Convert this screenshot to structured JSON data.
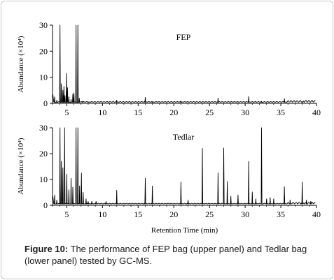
{
  "caption": {
    "label": "Figure 10:",
    "text": "The performance of FEP bag (upper panel) and Tedlar bag (lower panel) tested by GC-MS."
  },
  "chart_data": [
    {
      "type": "line",
      "panel": "upper",
      "title": "FEP",
      "xlabel": "",
      "ylabel": "Abundance (×10⁴)",
      "xlim": [
        3,
        40
      ],
      "ylim": [
        0,
        30
      ],
      "x_ticks": [
        5,
        10,
        15,
        20,
        25,
        30,
        35,
        40
      ],
      "y_ticks": [
        0,
        10,
        20,
        30
      ],
      "baseline": 0.4,
      "peaks": [
        {
          "x": 3.3,
          "y": 2.5
        },
        {
          "x": 3.6,
          "y": 1.2
        },
        {
          "x": 4.05,
          "y": 30
        },
        {
          "x": 4.25,
          "y": 7.5
        },
        {
          "x": 4.45,
          "y": 5
        },
        {
          "x": 4.6,
          "y": 6.5
        },
        {
          "x": 4.75,
          "y": 3
        },
        {
          "x": 4.95,
          "y": 11.5
        },
        {
          "x": 5.1,
          "y": 6
        },
        {
          "x": 5.3,
          "y": 2.5
        },
        {
          "x": 5.6,
          "y": 1.5
        },
        {
          "x": 5.85,
          "y": 3.5
        },
        {
          "x": 6.0,
          "y": 4
        },
        {
          "x": 6.3,
          "y": 30
        },
        {
          "x": 6.55,
          "y": 30
        },
        {
          "x": 6.75,
          "y": 2
        },
        {
          "x": 7.2,
          "y": 0.8
        },
        {
          "x": 8.0,
          "y": 0.6
        },
        {
          "x": 12.0,
          "y": 1.2
        },
        {
          "x": 16.0,
          "y": 2.3
        },
        {
          "x": 17.0,
          "y": 0.7
        },
        {
          "x": 21.0,
          "y": 0.9
        },
        {
          "x": 26.2,
          "y": 2.0
        },
        {
          "x": 30.5,
          "y": 2.6
        },
        {
          "x": 32.3,
          "y": 0.8
        },
        {
          "x": 35.5,
          "y": 1.8
        },
        {
          "x": 38.0,
          "y": 0.6
        }
      ]
    },
    {
      "type": "line",
      "panel": "lower",
      "title": "Tedlar",
      "xlabel": "Retention Time (min)",
      "ylabel": "Abundance (×10⁴)",
      "xlim": [
        3,
        40
      ],
      "ylim": [
        0,
        30
      ],
      "x_ticks": [
        5,
        10,
        15,
        20,
        25,
        30,
        35,
        40
      ],
      "y_ticks": [
        0,
        10,
        20,
        30
      ],
      "baseline": 0.5,
      "peaks": [
        {
          "x": 3.3,
          "y": 4
        },
        {
          "x": 3.6,
          "y": 2
        },
        {
          "x": 4.05,
          "y": 30
        },
        {
          "x": 4.25,
          "y": 17
        },
        {
          "x": 4.45,
          "y": 14.5
        },
        {
          "x": 4.7,
          "y": 30
        },
        {
          "x": 5.0,
          "y": 12
        },
        {
          "x": 5.3,
          "y": 6
        },
        {
          "x": 5.6,
          "y": 10.5
        },
        {
          "x": 5.85,
          "y": 7
        },
        {
          "x": 6.3,
          "y": 30
        },
        {
          "x": 6.55,
          "y": 30
        },
        {
          "x": 6.8,
          "y": 7.5
        },
        {
          "x": 7.05,
          "y": 12.5
        },
        {
          "x": 7.3,
          "y": 5
        },
        {
          "x": 7.7,
          "y": 2.5
        },
        {
          "x": 8.0,
          "y": 1.5
        },
        {
          "x": 8.5,
          "y": 1.5
        },
        {
          "x": 9.1,
          "y": 1.5
        },
        {
          "x": 10.5,
          "y": 1.5
        },
        {
          "x": 12.0,
          "y": 5.8
        },
        {
          "x": 16.0,
          "y": 10.5
        },
        {
          "x": 17.0,
          "y": 7.5
        },
        {
          "x": 21.0,
          "y": 9
        },
        {
          "x": 22.0,
          "y": 2
        },
        {
          "x": 24.0,
          "y": 22
        },
        {
          "x": 26.2,
          "y": 12.5
        },
        {
          "x": 27.0,
          "y": 22.2
        },
        {
          "x": 27.5,
          "y": 9.2
        },
        {
          "x": 28.0,
          "y": 3.5
        },
        {
          "x": 29.0,
          "y": 4
        },
        {
          "x": 30.5,
          "y": 17
        },
        {
          "x": 31.0,
          "y": 5.2
        },
        {
          "x": 31.5,
          "y": 2.5
        },
        {
          "x": 32.3,
          "y": 30
        },
        {
          "x": 33.0,
          "y": 2.5
        },
        {
          "x": 33.5,
          "y": 3
        },
        {
          "x": 34.0,
          "y": 2.5
        },
        {
          "x": 35.5,
          "y": 7.2
        },
        {
          "x": 36.3,
          "y": 2
        },
        {
          "x": 38.0,
          "y": 9
        },
        {
          "x": 38.6,
          "y": 2
        },
        {
          "x": 39.2,
          "y": 1.5
        }
      ]
    }
  ]
}
